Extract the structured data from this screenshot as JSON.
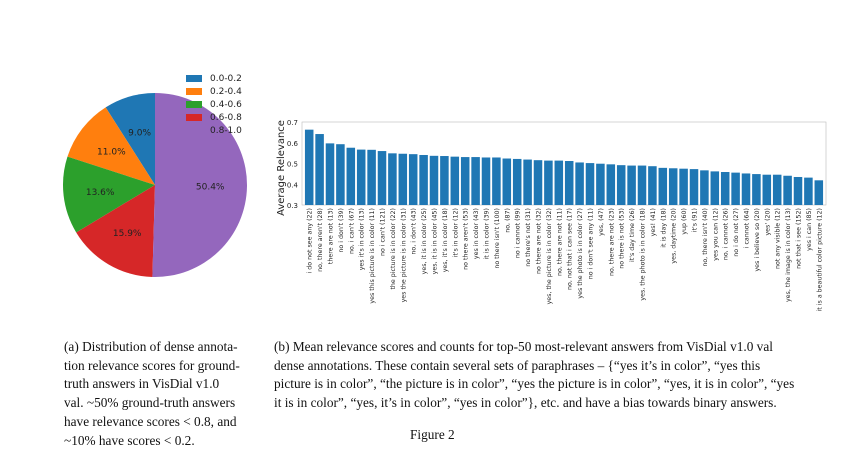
{
  "figure": {
    "left": {
      "chart_data": {
        "type": "pie",
        "labels": [
          "0.0-0.2",
          "0.2-0.4",
          "0.4-0.6",
          "0.6-0.8",
          "0.8-1.0"
        ],
        "values": [
          9.0,
          11.0,
          13.6,
          15.9,
          50.4
        ],
        "value_labels": [
          "9.0%",
          "11.0%",
          "13.6%",
          "15.9%",
          "50.4%"
        ],
        "colors": [
          "#1f77b4",
          "#ff7f0e",
          "#2ca02c",
          "#d62728",
          "#9467bd"
        ],
        "legend_position": "top-right",
        "title": ""
      },
      "caption_lines": [
        "(a) Distribution of dense annota-",
        "tion relevance scores for ground-",
        "truth answers in VisDial v1.0",
        "val. ~50% ground-truth answers",
        "have relevance scores < 0.8, and",
        "~10% have scores < 0.2."
      ]
    },
    "right": {
      "chart_data": {
        "type": "bar",
        "ylabel": "Average Relevance",
        "xlabel": "",
        "ylim": [
          0.3,
          0.7
        ],
        "yticks": [
          "0.3",
          "0.4",
          "0.5",
          "0.6",
          "0.7"
        ],
        "color": "#1f77b4",
        "grid": false,
        "categories": [
          "i do not see any (22)",
          "no, there aren't (28)",
          "there are not (13)",
          "no i don't (39)",
          "no, i can't (67)",
          "yes it's in color (13)",
          "yes this picture is in color (11)",
          "no i can't (121)",
          "the picture is in color (22)",
          "yes the picture is in color (31)",
          "no, i don't (43)",
          "yes, it is in color (25)",
          "yes, it is in color (45)",
          "yes, it's in color (18)",
          "it's in color (12)",
          "no there aren't (53)",
          "yes in color (43)",
          "it is in color (39)",
          "no there isn't (100)",
          "no, (87)",
          "no i cannot (99)",
          "no there's not (31)",
          "no there are not (32)",
          "yes, the picture is in color (32)",
          "no, there are not (11)",
          "no, not that i can see (17)",
          "yes the photo is in color (27)",
          "no i don't see any (11)",
          "yes, (47)",
          "no, there are not (23)",
          "no there is not (53)",
          "it's day time (26)",
          "yes, the photo is in color (18)",
          "yes! (41)",
          "it is day (18)",
          "yes, daytime (20)",
          "yup (60)",
          "it's (91)",
          "no, there isn't (40)",
          "yes you can (12)",
          "no, i cannot (26)",
          "no i do not (27)",
          "i cannot (64)",
          "yes i believe so (20)",
          "yes' (20)",
          "not any visible (12)",
          "yes, the image is in color (13)",
          "not that i see (152)",
          "yes i can (85)",
          "it is a beautiful color picture (12)"
        ],
        "values": [
          0.663,
          0.642,
          0.597,
          0.593,
          0.576,
          0.567,
          0.566,
          0.56,
          0.549,
          0.547,
          0.545,
          0.541,
          0.537,
          0.536,
          0.533,
          0.531,
          0.531,
          0.529,
          0.529,
          0.524,
          0.522,
          0.519,
          0.516,
          0.514,
          0.514,
          0.512,
          0.505,
          0.502,
          0.499,
          0.496,
          0.492,
          0.49,
          0.49,
          0.487,
          0.479,
          0.477,
          0.475,
          0.473,
          0.467,
          0.462,
          0.459,
          0.456,
          0.452,
          0.449,
          0.446,
          0.446,
          0.441,
          0.435,
          0.432,
          0.419
        ]
      },
      "caption_lines": [
        "(b) Mean relevance scores and counts for top-50 most-relevant answers from VisDial v1.0 val",
        "dense annotations.  These contain several sets of paraphrases – {“yes it’s in color”, “yes this",
        "picture is in color”, “the picture is in color”, “yes the picture is in color”, “yes, it is in color”, “yes",
        "it is in color”, “yes, it’s in color”, “yes in color”}, etc. and have a bias towards binary answers."
      ]
    },
    "figure_label": "Figure 2"
  }
}
